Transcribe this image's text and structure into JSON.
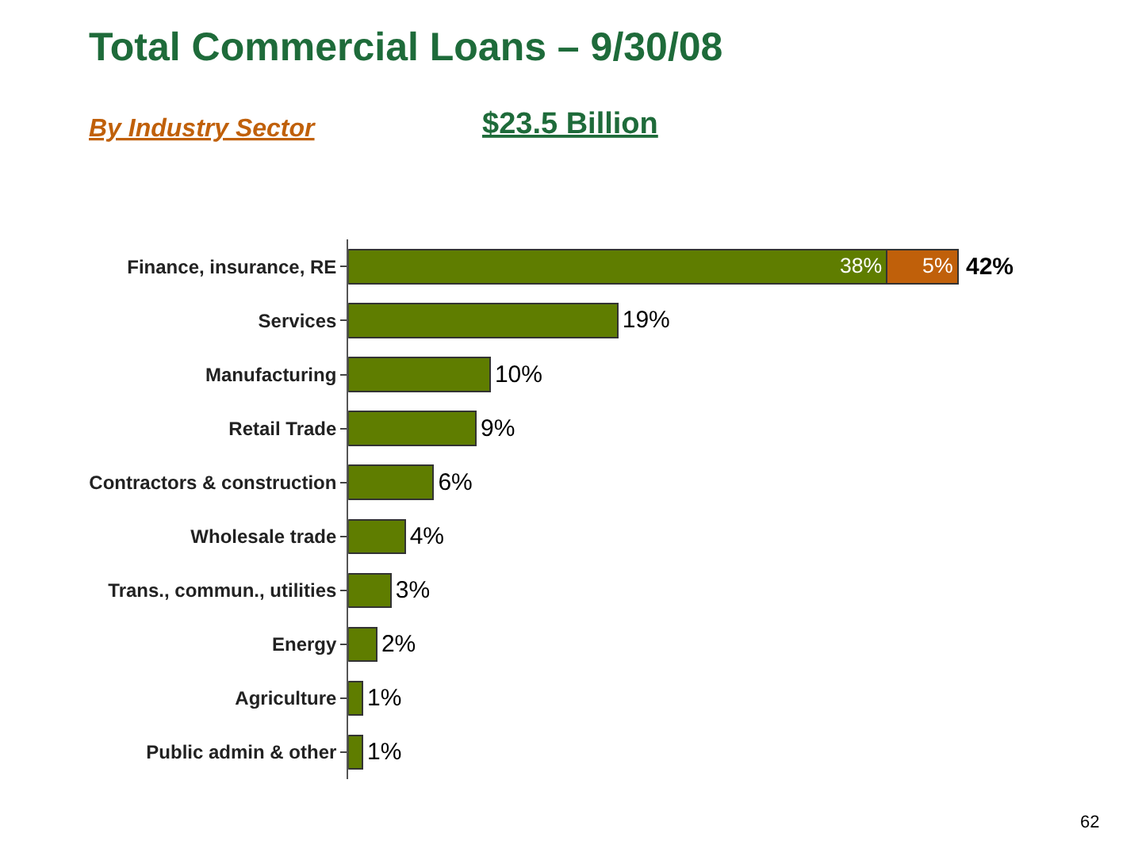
{
  "chart_data": {
    "type": "bar",
    "orientation": "horizontal",
    "stacked": true,
    "title": "Total Commercial Loans – 9/30/08",
    "subtitle": "By Industry Sector",
    "annotations": [
      "$23.5 Billion",
      "62"
    ],
    "categories": [
      "Finance, insurance, RE",
      "Services",
      "Manufacturing",
      "Retail Trade",
      "Contractors & construction",
      "Wholesale trade",
      "Trans., commun., utilities",
      "Energy",
      "Agriculture",
      "Public admin & other"
    ],
    "series": [
      {
        "color": "#5f7d00",
        "values": [
          38,
          19,
          10,
          9,
          6,
          4,
          3,
          2,
          1,
          1
        ],
        "value_labels": [
          "38%",
          "19%",
          "10%",
          "9%",
          "6%",
          "4%",
          "3%",
          "2%",
          "1%",
          "1%"
        ]
      },
      {
        "color": "#c0600a",
        "values": [
          5,
          null,
          null,
          null,
          null,
          null,
          null,
          null,
          null,
          null
        ],
        "value_labels": [
          "5%",
          null,
          null,
          null,
          null,
          null,
          null,
          null,
          null,
          null
        ]
      }
    ],
    "totals": [
      "42%",
      null,
      null,
      null,
      null,
      null,
      null,
      null,
      null,
      null
    ]
  }
}
